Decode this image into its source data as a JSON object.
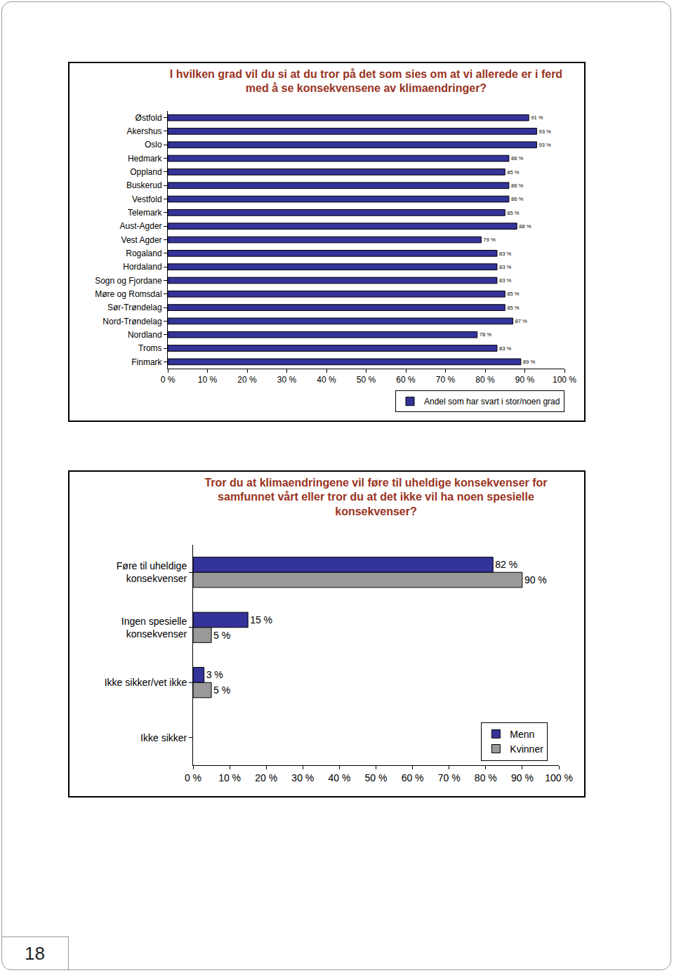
{
  "page_number": 18,
  "chart_data": [
    {
      "type": "bar",
      "orientation": "horizontal",
      "title": "I hvilken grad vil du si at du tror på det som sies om at vi allerede er i ferd med å se konsekvensene av klimaendringer?",
      "categories": [
        "Østfold",
        "Akershus",
        "Oslo",
        "Hedmark",
        "Oppland",
        "Buskerud",
        "Vestfold",
        "Telemark",
        "Aust-Agder",
        "Vest Agder",
        "Rogaland",
        "Hordaland",
        "Sogn og Fjordane",
        "Møre og Romsdal",
        "Sør-Trøndelag",
        "Nord-Trøndelag",
        "Nordland",
        "Troms",
        "Finmark"
      ],
      "series": [
        {
          "name": "Andel som har svart i stor/noen grad",
          "color": "#333399",
          "values": [
            91,
            93,
            93,
            86,
            85,
            86,
            86,
            85,
            88,
            79,
            83,
            83,
            83,
            85,
            85,
            87,
            78,
            83,
            89
          ],
          "value_labels": [
            "91 %",
            "93 %",
            "93 %",
            "86 %",
            "85 %",
            "86 %",
            "86 %",
            "85 %",
            "88 %",
            "79 %",
            "83 %",
            "83 %",
            "83 %",
            "85 %",
            "85 %",
            "87 %",
            "78 %",
            "83 %",
            "89 %"
          ]
        }
      ],
      "xlim": [
        0,
        100
      ],
      "xticks": [
        {
          "value": 0,
          "label": "0 %"
        },
        {
          "value": 10,
          "label": "10 %"
        },
        {
          "value": 20,
          "label": "20 %"
        },
        {
          "value": 30,
          "label": "30 %"
        },
        {
          "value": 40,
          "label": "40 %"
        },
        {
          "value": 50,
          "label": "50 %"
        },
        {
          "value": 60,
          "label": "60 %"
        },
        {
          "value": 70,
          "label": "70 %"
        },
        {
          "value": 80,
          "label": "80 %"
        },
        {
          "value": 90,
          "label": "90 %"
        },
        {
          "value": 100,
          "label": "100 %"
        }
      ],
      "data_labels": true,
      "grid": false,
      "legend": "bottom"
    },
    {
      "type": "bar",
      "orientation": "horizontal",
      "title": "Tror du at klimaendringene vil føre til uheldige konsekvenser for samfunnet vårt eller tror du at det ikke vil ha noen spesielle konsekvenser?",
      "categories": [
        "Føre til uheldige konsekvenser",
        "Ingen spesielle konsekvenser",
        "Ikke sikker/vet ikke",
        "Ikke sikker"
      ],
      "series": [
        {
          "name": "Menn",
          "color": "#333399",
          "values": [
            82,
            15,
            3,
            null
          ],
          "value_labels": [
            "82 %",
            "15 %",
            "3 %",
            null
          ]
        },
        {
          "name": "Kvinner",
          "color": "#999999",
          "values": [
            90,
            5,
            5,
            null
          ],
          "value_labels": [
            "90 %",
            "5 %",
            "5 %",
            null
          ]
        }
      ],
      "xlim": [
        0,
        100
      ],
      "xticks": [
        {
          "value": 0,
          "label": "0 %"
        },
        {
          "value": 10,
          "label": "10 %"
        },
        {
          "value": 20,
          "label": "20 %"
        },
        {
          "value": 30,
          "label": "30 %"
        },
        {
          "value": 40,
          "label": "40 %"
        },
        {
          "value": 50,
          "label": "50 %"
        },
        {
          "value": 60,
          "label": "60 %"
        },
        {
          "value": 70,
          "label": "70 %"
        },
        {
          "value": 80,
          "label": "80 %"
        },
        {
          "value": 90,
          "label": "90 %"
        },
        {
          "value": 100,
          "label": "100 %"
        }
      ],
      "data_labels": true,
      "grid": false,
      "legend": "bottom right"
    }
  ]
}
